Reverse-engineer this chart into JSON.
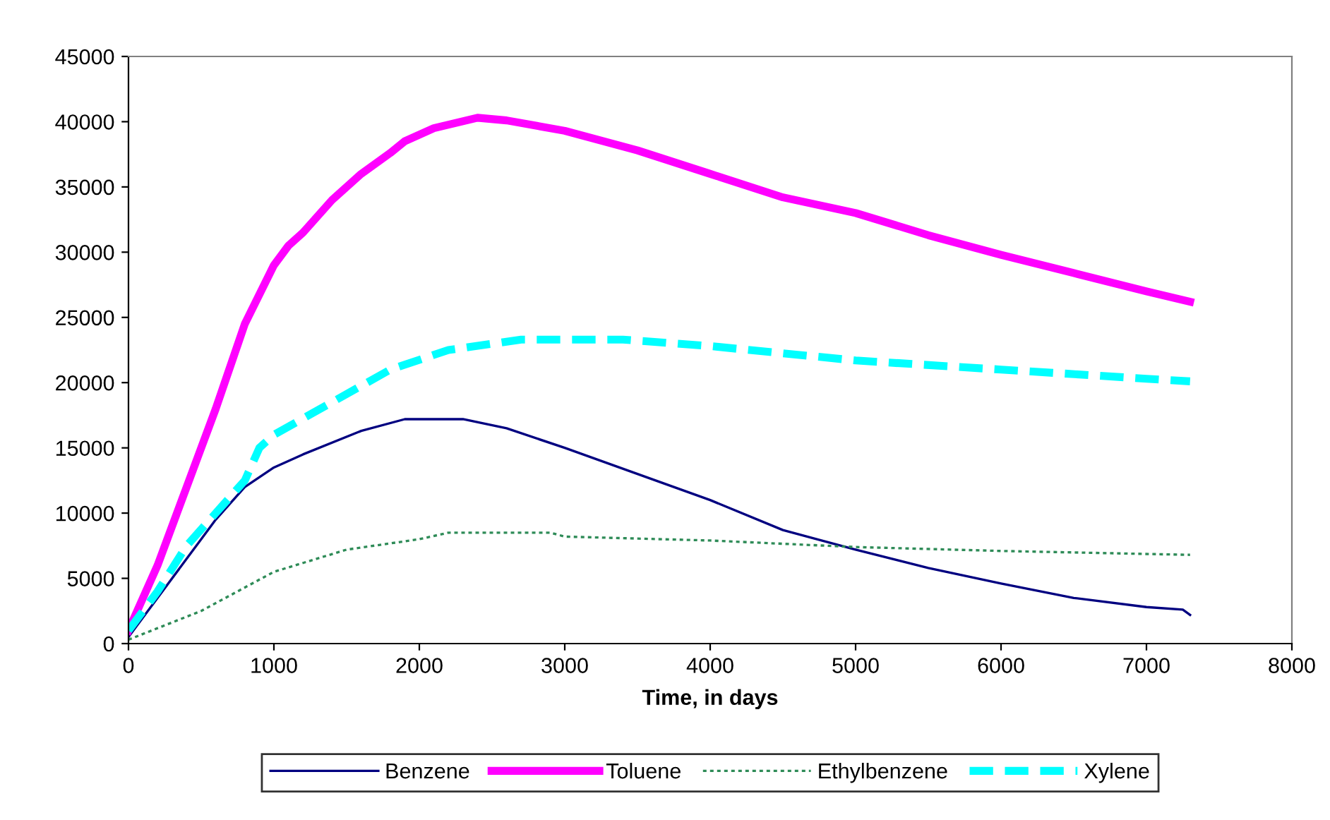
{
  "chart_data": {
    "type": "line",
    "xlabel": "Time, in days",
    "xlim": [
      0,
      8000
    ],
    "xticks": [
      0,
      1000,
      2000,
      3000,
      4000,
      5000,
      6000,
      7000,
      8000
    ],
    "ylim": [
      0,
      45000
    ],
    "yticks": [
      0,
      5000,
      10000,
      15000,
      20000,
      25000,
      30000,
      35000,
      40000,
      45000
    ],
    "grid": false,
    "legend": "bottom",
    "marker": "none",
    "series": [
      {
        "name": "Benzene",
        "color": "#000080",
        "line_style": "solid",
        "x": [
          0,
          200,
          400,
          600,
          800,
          1000,
          1200,
          1600,
          1900,
          2300,
          2600,
          3000,
          3500,
          4000,
          4500,
          5000,
          5500,
          6000,
          6500,
          7000,
          7250,
          7300
        ],
        "values": [
          500,
          3500,
          6500,
          9500,
          12000,
          13500,
          14500,
          16300,
          17200,
          17200,
          16500,
          15000,
          13000,
          11000,
          8700,
          7200,
          5800,
          4600,
          3500,
          2800,
          2600,
          2200
        ]
      },
      {
        "name": "Toluene",
        "color": "#ff00ff",
        "line_style": "solid",
        "x": [
          0,
          200,
          400,
          600,
          800,
          1000,
          1100,
          1200,
          1400,
          1600,
          1800,
          1900,
          2100,
          2400,
          2600,
          3000,
          3500,
          4000,
          4500,
          5000,
          5500,
          6000,
          6500,
          7000,
          7300
        ],
        "values": [
          1000,
          6000,
          12000,
          18000,
          24500,
          29000,
          30500,
          31500,
          34000,
          36000,
          37600,
          38500,
          39500,
          40300,
          40100,
          39300,
          37800,
          36000,
          34200,
          33000,
          31300,
          29800,
          28400,
          27000,
          26200
        ]
      },
      {
        "name": "Ethylbenzene",
        "color": "#2e8b57",
        "line_style": "dotted",
        "x": [
          0,
          500,
          1000,
          1500,
          2000,
          2200,
          2900,
          3000,
          4000,
          5000,
          6000,
          7300
        ],
        "values": [
          300,
          2500,
          5500,
          7200,
          8000,
          8500,
          8500,
          8200,
          7900,
          7400,
          7100,
          6800
        ]
      },
      {
        "name": "Xylene",
        "color": "#00ffff",
        "line_style": "dashed",
        "x": [
          0,
          200,
          400,
          600,
          800,
          900,
          1000,
          1400,
          1800,
          2200,
          2700,
          3400,
          4000,
          5000,
          6000,
          7000,
          7300
        ],
        "values": [
          1000,
          4000,
          7500,
          10000,
          12500,
          15000,
          16000,
          18500,
          21000,
          22500,
          23300,
          23300,
          22800,
          21700,
          21000,
          20300,
          20100
        ]
      }
    ]
  }
}
